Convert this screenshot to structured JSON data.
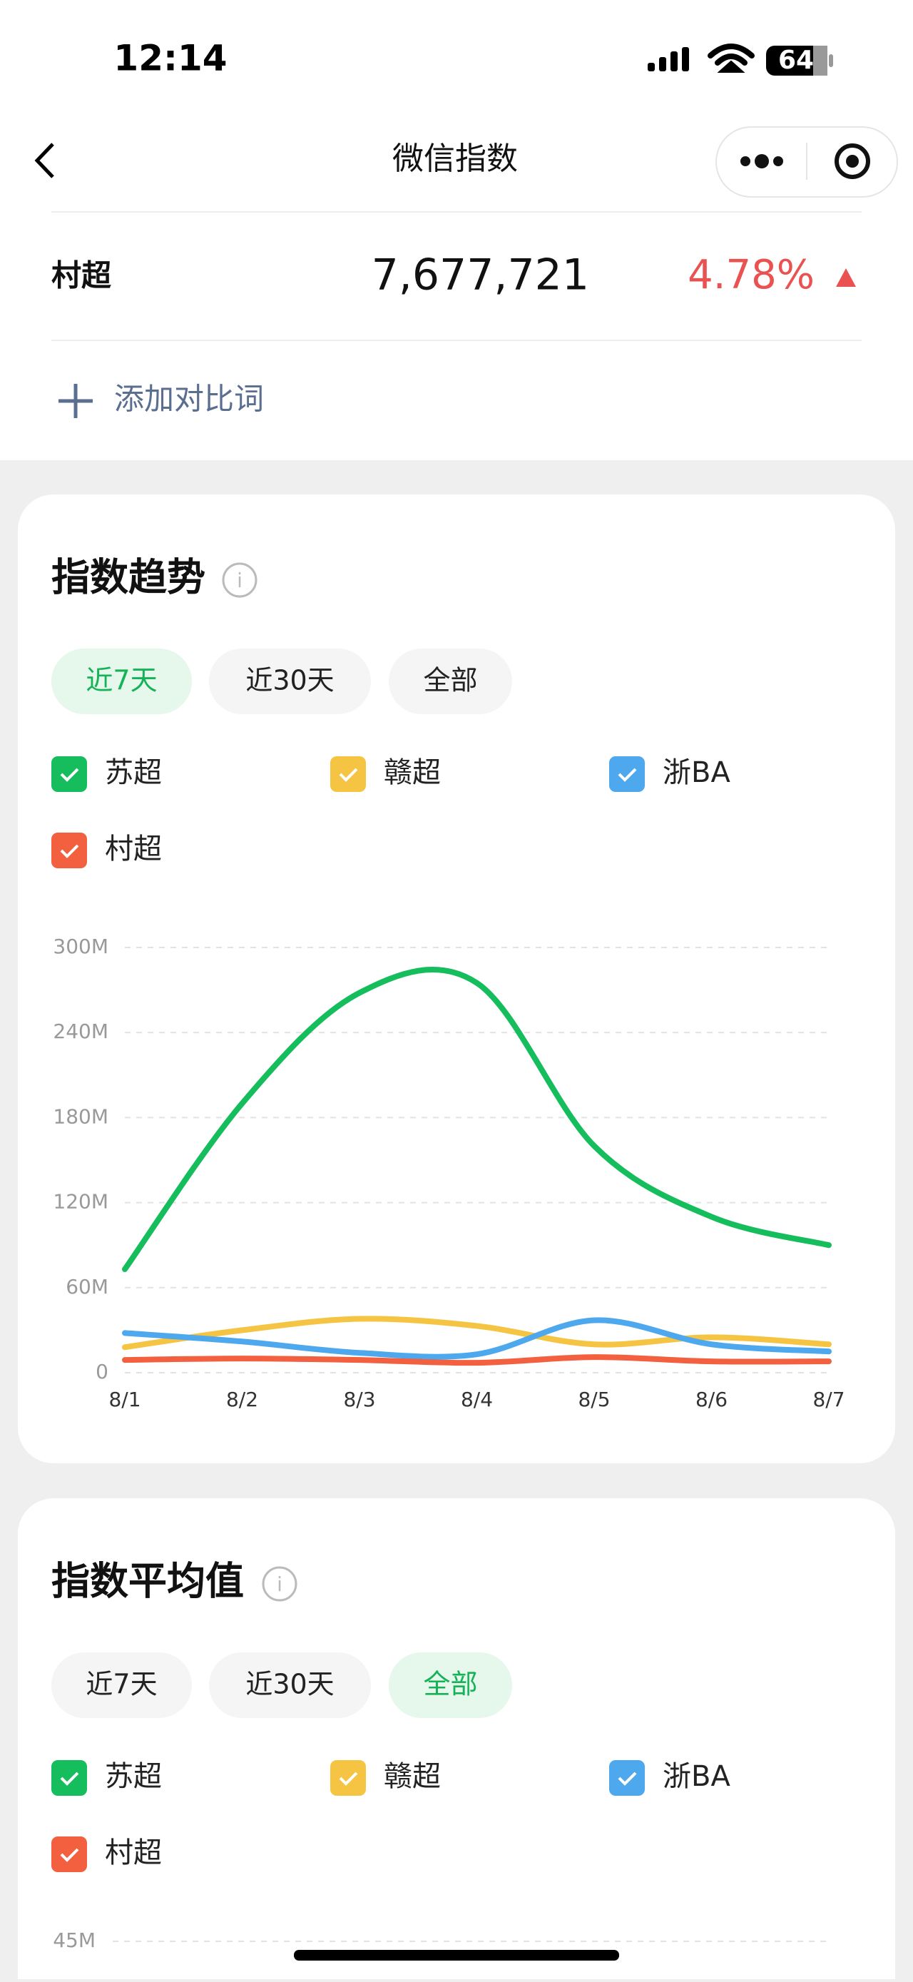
{
  "status_bar": {
    "time": "12:14",
    "battery": "64"
  },
  "nav": {
    "title": "微信指数"
  },
  "keyword": {
    "name": "村超",
    "value": "7,677,721",
    "change": "4.78%"
  },
  "add_compare": "添加对比词",
  "chart_data": [
    {
      "type": "line",
      "title": "指数趋势",
      "period_options": [
        "近7天",
        "近30天",
        "全部"
      ],
      "selected_period": 0,
      "categories": [
        "8/1",
        "8/2",
        "8/3",
        "8/4",
        "8/5",
        "8/6",
        "8/7"
      ],
      "series": [
        {
          "name": "苏超",
          "color": "#16bd5c",
          "values": [
            73,
            190,
            268,
            275,
            160,
            110,
            90
          ]
        },
        {
          "name": "赣超",
          "color": "#f6c443",
          "values": [
            18,
            30,
            38,
            33,
            20,
            25,
            20
          ]
        },
        {
          "name": "浙BA",
          "color": "#4da8ee",
          "values": [
            28,
            22,
            14,
            13,
            37,
            20,
            15
          ]
        },
        {
          "name": "村超",
          "color": "#f2603f",
          "values": [
            9,
            10,
            9,
            7,
            11,
            8,
            8
          ]
        }
      ],
      "ylim": [
        0,
        300
      ],
      "yticks": [
        0,
        {
          "value": 60,
          "label": "60M"
        },
        {
          "value": 120,
          "label": "120M"
        },
        {
          "value": 180,
          "label": "180M"
        },
        {
          "value": 240,
          "label": "240M"
        },
        {
          "value": 300,
          "label": "300M"
        }
      ],
      "grid": true
    },
    {
      "type": "bar",
      "title": "指数平均值",
      "period_options": [
        "近7天",
        "近30天",
        "全部"
      ],
      "selected_period": 2,
      "series": [
        {
          "name": "苏超",
          "color": "#16bd5c"
        },
        {
          "name": "赣超",
          "color": "#f6c443"
        },
        {
          "name": "浙BA",
          "color": "#4da8ee"
        },
        {
          "name": "村超",
          "color": "#f2603f"
        }
      ],
      "yticks": [
        {
          "value": 45,
          "label": "45M"
        }
      ],
      "grid": true
    }
  ]
}
